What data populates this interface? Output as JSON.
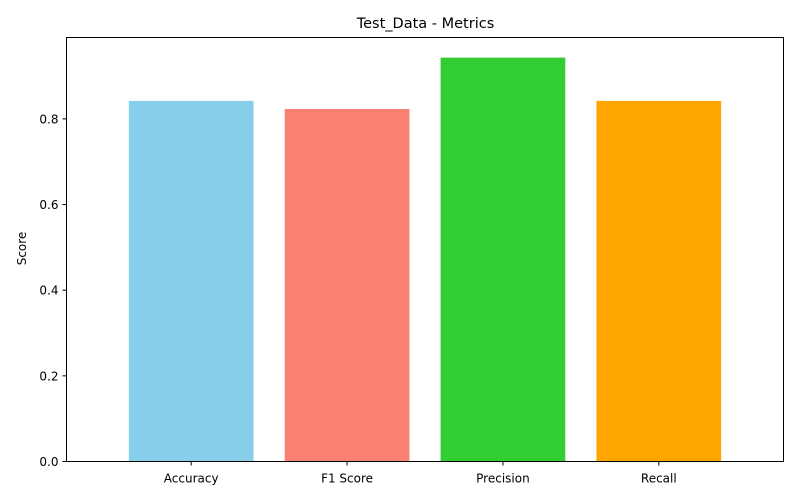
{
  "chart_data": {
    "type": "bar",
    "title": "Test_Data - Metrics",
    "xlabel": "",
    "ylabel": "Score",
    "categories": [
      "Accuracy",
      "F1 Score",
      "Precision",
      "Recall"
    ],
    "values": [
      0.842,
      0.823,
      0.943,
      0.842
    ],
    "colors": [
      "#87ceeb",
      "#fa8072",
      "#32cd32",
      "#ffa500"
    ],
    "ylim": [
      0,
      0.99
    ],
    "yticks": [
      0.0,
      0.2,
      0.4,
      0.6,
      0.8
    ],
    "ytick_labels": [
      "0.0",
      "0.2",
      "0.4",
      "0.6",
      "0.8"
    ],
    "grid": false,
    "legend": "none"
  }
}
